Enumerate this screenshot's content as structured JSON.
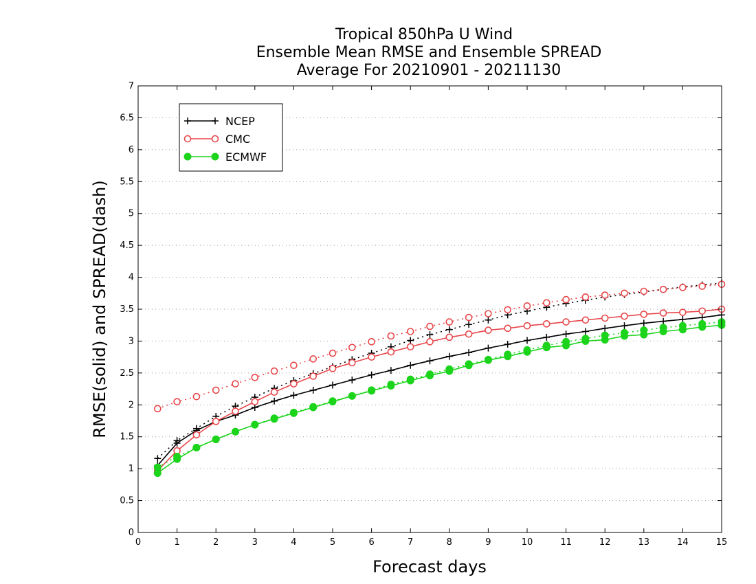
{
  "chart_data": {
    "type": "line",
    "title": [
      "Tropical 850hPa U Wind",
      "Ensemble Mean RMSE and Ensemble SPREAD",
      "Average For 20210901 - 20211130"
    ],
    "xlabel": "Forecast days",
    "ylabel": "RMSE(solid) and SPREAD(dash)",
    "xlim": [
      0,
      15
    ],
    "ylim": [
      0,
      7
    ],
    "xticks": [
      "0",
      "1",
      "2",
      "3",
      "4",
      "5",
      "6",
      "7",
      "8",
      "9",
      "10",
      "11",
      "12",
      "13",
      "14",
      "15"
    ],
    "yticks": [
      "0",
      "0.5",
      "1",
      "1.5",
      "2",
      "2.5",
      "3",
      "3.5",
      "4",
      "4.5",
      "5",
      "5.5",
      "6",
      "6.5",
      "7"
    ],
    "grid": "horizontal-dotted",
    "legend": {
      "placement": "top-left",
      "entries": [
        "NCEP",
        "CMC",
        "ECMWF"
      ]
    },
    "x": [
      0.5,
      1,
      1.5,
      2,
      2.5,
      3,
      3.5,
      4,
      4.5,
      5,
      5.5,
      6,
      6.5,
      7,
      7.5,
      8,
      8.5,
      9,
      9.5,
      10,
      10.5,
      11,
      11.5,
      12,
      12.5,
      13,
      13.5,
      14,
      14.5,
      15
    ],
    "series": [
      {
        "name": "NCEP",
        "kind": "rmse",
        "color": "#000000",
        "marker": "plus",
        "values": [
          1.05,
          1.4,
          1.6,
          1.74,
          1.84,
          1.96,
          2.06,
          2.15,
          2.23,
          2.31,
          2.39,
          2.47,
          2.54,
          2.62,
          2.69,
          2.76,
          2.82,
          2.89,
          2.95,
          3.01,
          3.06,
          3.11,
          3.15,
          3.2,
          3.24,
          3.28,
          3.31,
          3.34,
          3.37,
          3.41
        ]
      },
      {
        "name": "NCEP",
        "kind": "spread",
        "color": "#000000",
        "marker": "plus",
        "values": [
          1.16,
          1.44,
          1.63,
          1.82,
          1.98,
          2.12,
          2.26,
          2.38,
          2.49,
          2.6,
          2.71,
          2.81,
          2.91,
          3.01,
          3.1,
          3.18,
          3.26,
          3.33,
          3.41,
          3.47,
          3.53,
          3.59,
          3.64,
          3.69,
          3.73,
          3.77,
          3.81,
          3.85,
          3.88,
          3.91
        ]
      },
      {
        "name": "CMC",
        "kind": "rmse",
        "color": "#e8474b",
        "marker": "circle-open",
        "values": [
          0.97,
          1.28,
          1.53,
          1.74,
          1.9,
          2.05,
          2.2,
          2.33,
          2.45,
          2.57,
          2.66,
          2.75,
          2.83,
          2.91,
          2.99,
          3.06,
          3.11,
          3.17,
          3.2,
          3.24,
          3.27,
          3.3,
          3.33,
          3.36,
          3.39,
          3.42,
          3.44,
          3.45,
          3.47,
          3.5
        ]
      },
      {
        "name": "CMC",
        "kind": "spread",
        "color": "#e8474b",
        "marker": "circle-open",
        "values": [
          1.94,
          2.05,
          2.13,
          2.23,
          2.33,
          2.43,
          2.53,
          2.62,
          2.72,
          2.81,
          2.9,
          2.99,
          3.08,
          3.15,
          3.23,
          3.3,
          3.37,
          3.43,
          3.49,
          3.55,
          3.6,
          3.65,
          3.69,
          3.72,
          3.75,
          3.78,
          3.81,
          3.84,
          3.86,
          3.89
        ]
      },
      {
        "name": "ECMWF",
        "kind": "rmse",
        "color": "#1bd41b",
        "marker": "circle-filled",
        "values": [
          0.93,
          1.15,
          1.33,
          1.46,
          1.58,
          1.69,
          1.78,
          1.87,
          1.96,
          2.05,
          2.14,
          2.22,
          2.3,
          2.38,
          2.46,
          2.53,
          2.62,
          2.7,
          2.76,
          2.83,
          2.9,
          2.93,
          3.0,
          3.02,
          3.08,
          3.1,
          3.15,
          3.18,
          3.22,
          3.25
        ]
      },
      {
        "name": "ECMWF",
        "kind": "spread",
        "color": "#1bd41b",
        "marker": "circle-filled",
        "values": [
          1.02,
          1.19,
          1.33,
          1.46,
          1.58,
          1.69,
          1.79,
          1.88,
          1.97,
          2.06,
          2.14,
          2.23,
          2.32,
          2.4,
          2.48,
          2.56,
          2.64,
          2.71,
          2.79,
          2.86,
          2.93,
          2.99,
          3.04,
          3.09,
          3.13,
          3.17,
          3.21,
          3.24,
          3.27,
          3.3
        ]
      }
    ]
  }
}
